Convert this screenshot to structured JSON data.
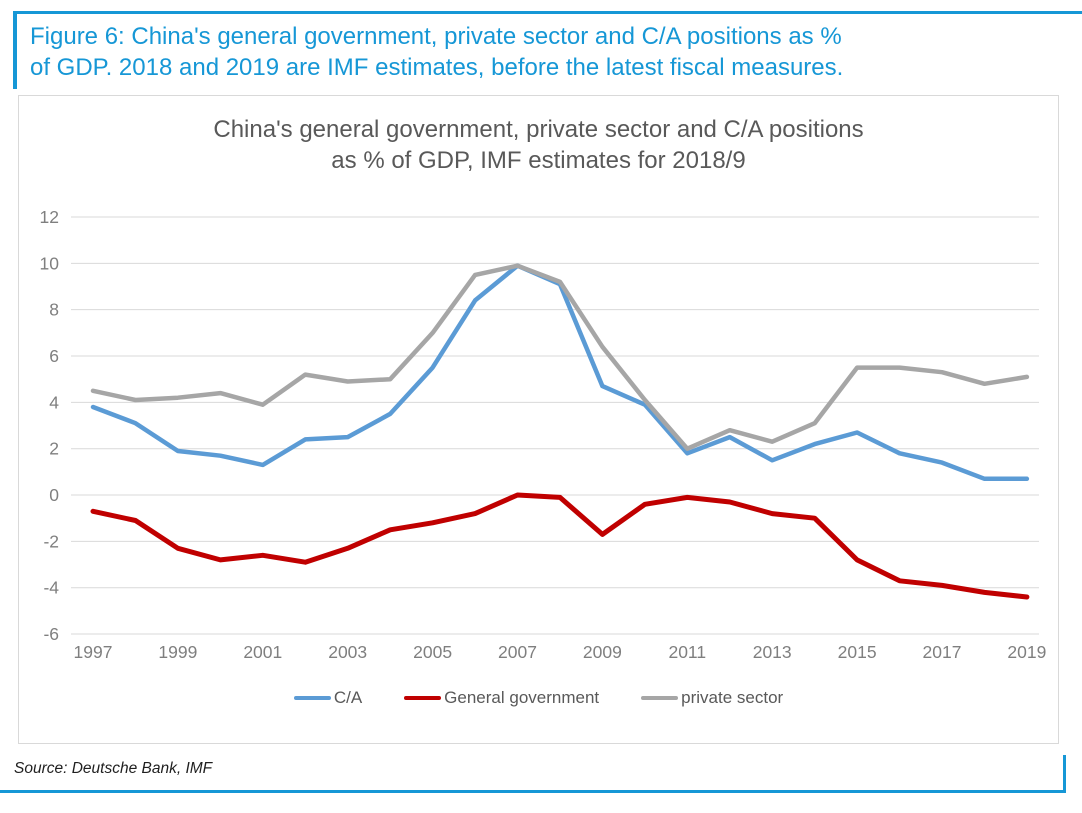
{
  "accent_color": "#1697D6",
  "figure_header": {
    "lines": [
      "Figure 6: China's general government, private sector and C/A positions as %",
      "of GDP. 2018 and 2019 are IMF estimates, before the latest fiscal measures."
    ]
  },
  "source_note": "Source: Deutsche Bank, IMF",
  "chart_data": {
    "type": "line",
    "title_line1": "China's general government, private sector and C/A positions",
    "title_line2": "as % of GDP, IMF estimates for 2018/9",
    "x": [
      1997,
      1998,
      1999,
      2000,
      2001,
      2002,
      2003,
      2004,
      2005,
      2006,
      2007,
      2008,
      2009,
      2010,
      2011,
      2012,
      2013,
      2014,
      2015,
      2016,
      2017,
      2018,
      2019
    ],
    "x_tick_labels": [
      "1997",
      "1999",
      "2001",
      "2003",
      "2005",
      "2007",
      "2009",
      "2011",
      "2013",
      "2015",
      "2017",
      "2019"
    ],
    "y_ticks": [
      12,
      10,
      8,
      6,
      4,
      2,
      0,
      -2,
      -4,
      -6
    ],
    "ylim": [
      -6,
      12
    ],
    "grid": true,
    "legend_position": "bottom",
    "grid_color": "#d9d9d9",
    "tick_label_color": "#7f7f7f",
    "series": [
      {
        "name": "C/A",
        "color": "#5B9BD5",
        "values": [
          3.8,
          3.1,
          1.9,
          1.7,
          1.3,
          2.4,
          2.5,
          3.5,
          5.5,
          8.4,
          9.9,
          9.1,
          4.7,
          3.9,
          1.8,
          2.5,
          1.5,
          2.2,
          2.7,
          1.8,
          1.4,
          0.7,
          0.7
        ]
      },
      {
        "name": "General government",
        "color": "#C00000",
        "values": [
          -0.7,
          -1.1,
          -2.3,
          -2.8,
          -2.6,
          -2.9,
          -2.3,
          -1.5,
          -1.2,
          -0.8,
          0.0,
          -0.1,
          -1.7,
          -0.4,
          -0.1,
          -0.3,
          -0.8,
          -1.0,
          -2.8,
          -3.7,
          -3.9,
          -4.2,
          -4.4
        ]
      },
      {
        "name": "private sector",
        "color": "#A6A6A6",
        "values": [
          4.5,
          4.1,
          4.2,
          4.4,
          3.9,
          5.2,
          4.9,
          5.0,
          7.0,
          9.5,
          9.9,
          9.2,
          6.4,
          4.1,
          2.0,
          2.8,
          2.3,
          3.1,
          5.5,
          5.5,
          5.3,
          4.8,
          5.1
        ]
      }
    ]
  }
}
